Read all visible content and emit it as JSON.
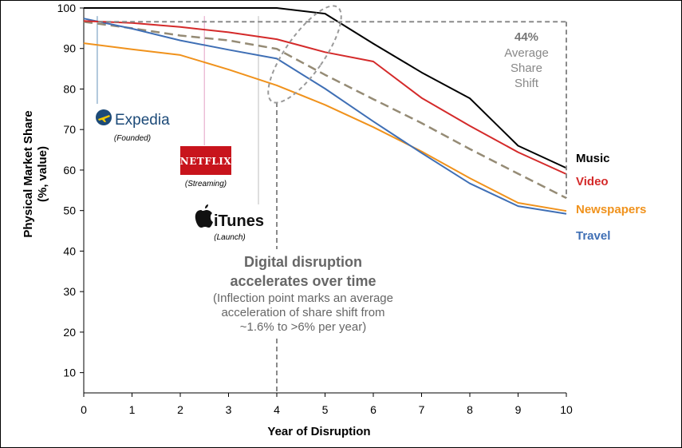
{
  "chart_data": {
    "type": "line",
    "xlabel": "Year of Disruption",
    "ylabel_line1": "Physical Market Share",
    "ylabel_line2": "(%, value)",
    "xlim": [
      0,
      10
    ],
    "ylim": [
      5,
      100
    ],
    "x_ticks": [
      0,
      1,
      2,
      3,
      4,
      5,
      6,
      7,
      8,
      9,
      10
    ],
    "y_ticks": [
      10,
      20,
      30,
      40,
      50,
      60,
      70,
      80,
      90,
      100
    ],
    "series": [
      {
        "name": "Music",
        "color": "#000000",
        "style": "solid",
        "x": [
          0,
          1,
          2,
          3,
          4,
          5,
          6,
          7,
          8,
          9,
          10
        ],
        "y": [
          100,
          100,
          100,
          100,
          100,
          98.6,
          91.2,
          84.1,
          77.7,
          66,
          60.5
        ]
      },
      {
        "name": "Video",
        "color": "#d42a2a",
        "style": "solid",
        "x": [
          0,
          1,
          2,
          3,
          4,
          5,
          6,
          7,
          8,
          9,
          10
        ],
        "y": [
          96.8,
          96.3,
          95.3,
          94,
          92.3,
          89.1,
          86.8,
          77.8,
          70.9,
          64.4,
          59
        ]
      },
      {
        "name": "Newspapers",
        "color": "#f0921c",
        "style": "solid",
        "x": [
          0,
          1,
          2,
          3,
          4,
          5,
          6,
          7,
          8,
          9,
          10
        ],
        "y": [
          91.3,
          89.8,
          88.4,
          84.8,
          80.9,
          76.1,
          70.6,
          64.6,
          58,
          51.9,
          49.9
        ]
      },
      {
        "name": "Travel",
        "color": "#3f6fb5",
        "style": "solid",
        "x": [
          0,
          1,
          2,
          3,
          4,
          5,
          6,
          7,
          8,
          9,
          10
        ],
        "y": [
          97.4,
          94.9,
          92,
          89.7,
          87.5,
          80.1,
          72,
          64.2,
          56.7,
          51.1,
          49.2
        ]
      },
      {
        "name": "Average",
        "color": "#958b75",
        "style": "dashed",
        "x": [
          0,
          1,
          2,
          3,
          4,
          5,
          6,
          7,
          8,
          9,
          10
        ],
        "y": [
          96.6,
          95,
          93.2,
          92,
          89.9,
          83.5,
          77.5,
          71.6,
          65.2,
          59.1,
          53.1
        ]
      }
    ],
    "series_labels": [
      {
        "text": "Music",
        "color": "#000000"
      },
      {
        "text": "Video",
        "color": "#d42a2a"
      },
      {
        "text": "Newspapers",
        "color": "#f0921c"
      },
      {
        "text": "Travel",
        "color": "#3f6fb5"
      }
    ],
    "events": [
      {
        "brand": "Expedia",
        "caption": "(Founded)",
        "x": 0.28,
        "line_color": "#7fa4c4"
      },
      {
        "brand": "NETFLIX",
        "caption": "(Streaming)",
        "x": 2.5,
        "line_color": "#e8b0cf"
      },
      {
        "brand": "iTunes",
        "caption": "(Launch)",
        "x": 3.62,
        "line_color": "#c8c8c8"
      }
    ],
    "inflection": {
      "year": 4,
      "headline_1": "Digital disruption",
      "headline_2": "accelerates over time",
      "body_1": "(Inflection point marks an average",
      "body_2": "acceleration of share shift from",
      "body_3": "~1.6% to >6% per year)"
    },
    "share_shift": {
      "value": "44%",
      "line_1": "Average",
      "line_2": "Share",
      "line_3": "Shift",
      "from_y": 96.6,
      "to_y": 53.1
    }
  }
}
